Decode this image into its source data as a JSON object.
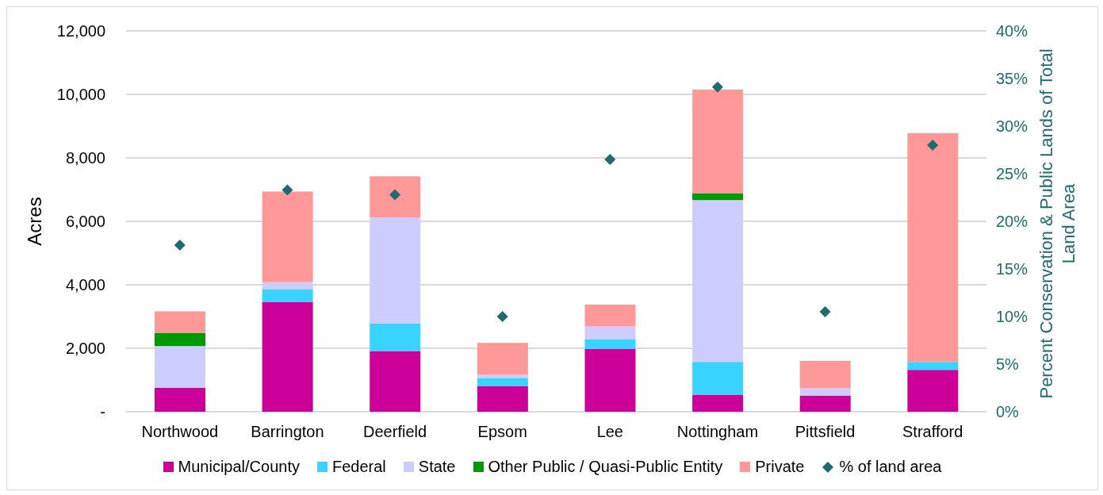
{
  "chart_data": {
    "type": "bar",
    "stacked": true,
    "ylabel": "Acres",
    "y2label": "Percent Conservation & Public Lands of Total Land Area",
    "categories": [
      "Northwood",
      "Barrington",
      "Deerfield",
      "Epsom",
      "Lee",
      "Nottingham",
      "Pittsfield",
      "Strafford"
    ],
    "series": [
      {
        "name": "Municipal/County",
        "color": "#cc0099",
        "values": [
          750,
          3460,
          1910,
          810,
          1980,
          540,
          500,
          1320
        ]
      },
      {
        "name": "Federal",
        "color": "#38d3ff",
        "values": [
          null,
          390,
          870,
          250,
          310,
          1030,
          null,
          250
        ]
      },
      {
        "name": "State",
        "color": "#ccccff",
        "values": [
          1320,
          230,
          3340,
          100,
          395,
          5100,
          240,
          null
        ]
      },
      {
        "name": "Other Public / Quasi-Public Entity",
        "color": "#009900",
        "values": [
          420,
          null,
          null,
          null,
          null,
          220,
          null,
          null
        ]
      },
      {
        "name": "Private",
        "color": "#ff9999",
        "values": [
          670,
          2860,
          1300,
          1010,
          690,
          3260,
          860,
          7210
        ]
      },
      {
        "name": "% of land area",
        "type": "scatter",
        "axis": "y2",
        "marker": "diamond",
        "color": "#1f6b6f",
        "values": [
          17.5,
          23.3,
          22.8,
          10.0,
          26.5,
          34.1,
          10.5,
          28.0
        ]
      }
    ],
    "ylim": [
      0,
      12000
    ],
    "yticks": [
      {
        "value": 0,
        "label": "-"
      },
      {
        "value": 2000,
        "label": "2,000"
      },
      {
        "value": 4000,
        "label": "4,000"
      },
      {
        "value": 6000,
        "label": "6,000"
      },
      {
        "value": 8000,
        "label": "8,000"
      },
      {
        "value": 10000,
        "label": "10,000"
      },
      {
        "value": 12000,
        "label": "12,000"
      }
    ],
    "y2lim": [
      0,
      40
    ],
    "y2ticks": [
      {
        "value": 0,
        "label": "0%"
      },
      {
        "value": 5,
        "label": "5%"
      },
      {
        "value": 10,
        "label": "10%"
      },
      {
        "value": 15,
        "label": "15%"
      },
      {
        "value": 20,
        "label": "20%"
      },
      {
        "value": 25,
        "label": "25%"
      },
      {
        "value": 30,
        "label": "30%"
      },
      {
        "value": 35,
        "label": "35%"
      },
      {
        "value": 40,
        "label": "40%"
      }
    ],
    "grid": "y",
    "legend": "bottom"
  }
}
